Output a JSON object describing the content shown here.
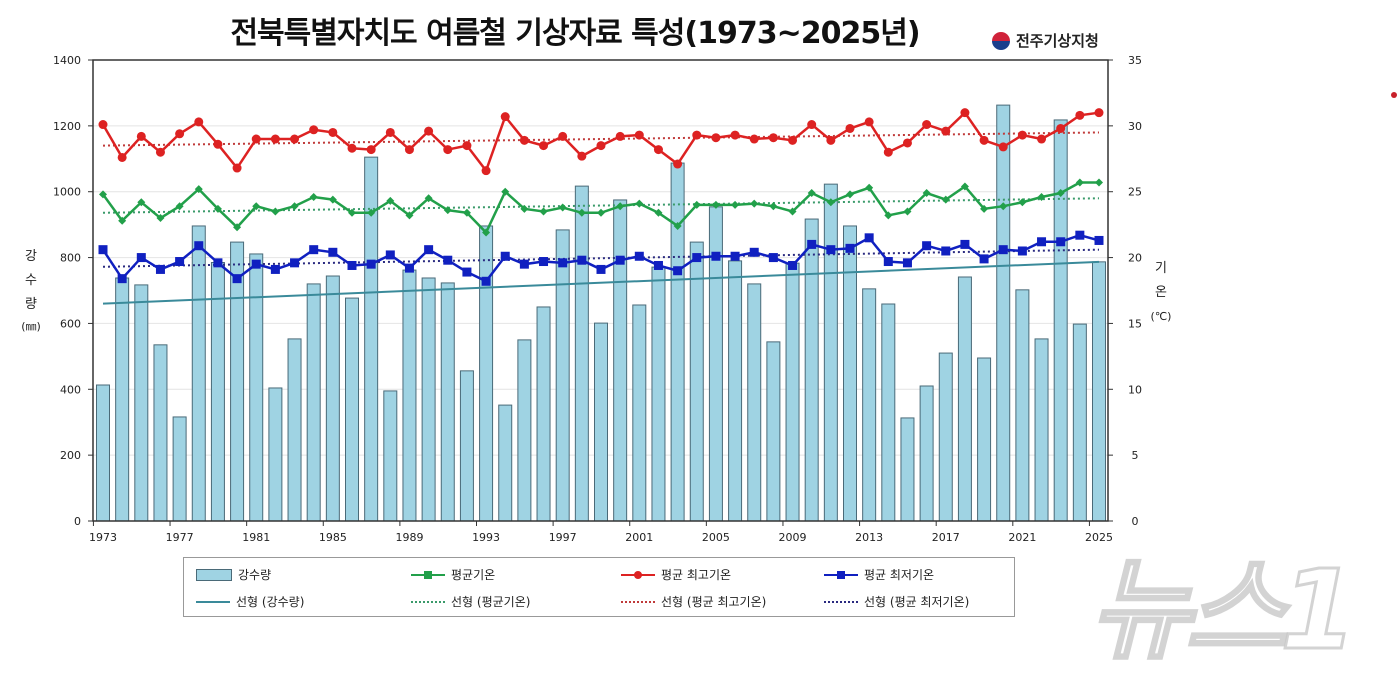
{
  "chart_data": {
    "type": "bar+line",
    "title": "전북특별자치도 여름철 기상자료 특성(1973~2025년)",
    "source": "전주기상지청",
    "ylabel_left": [
      "강",
      "수",
      "량",
      "(㎜)"
    ],
    "ylabel_right": [
      "기",
      "온",
      "(℃)"
    ],
    "ylim_left": [
      0,
      1400
    ],
    "yticks_left": [
      0,
      200,
      400,
      600,
      800,
      1000,
      1200,
      1400
    ],
    "ylim_right": [
      0,
      35
    ],
    "yticks_right": [
      0,
      5,
      10,
      15,
      20,
      25,
      30,
      35
    ],
    "xticks": [
      1973,
      1977,
      1981,
      1985,
      1989,
      1993,
      1997,
      2001,
      2005,
      2009,
      2013,
      2017,
      2021,
      2025
    ],
    "grid": "horizontal",
    "legend_position": "bottom",
    "x": [
      1973,
      1974,
      1975,
      1976,
      1977,
      1978,
      1979,
      1980,
      1981,
      1982,
      1983,
      1984,
      1985,
      1986,
      1987,
      1988,
      1989,
      1990,
      1991,
      1992,
      1993,
      1994,
      1995,
      1996,
      1997,
      1998,
      1999,
      2000,
      2001,
      2002,
      2003,
      2004,
      2005,
      2006,
      2007,
      2008,
      2009,
      2010,
      2011,
      2012,
      2013,
      2014,
      2015,
      2016,
      2017,
      2018,
      2019,
      2020,
      2021,
      2022,
      2023,
      2024,
      2025
    ],
    "series": [
      {
        "name": "강수량",
        "type": "bar",
        "axis": "left",
        "color": "#9fd3e3",
        "values": [
          413,
          738,
          717,
          535,
          316,
          896,
          785,
          847,
          811,
          404,
          553,
          720,
          744,
          677,
          1105,
          395,
          762,
          738,
          723,
          456,
          896,
          352,
          550,
          650,
          884,
          1017,
          601,
          975,
          656,
          771,
          1087,
          847,
          954,
          790,
          720,
          544,
          783,
          917,
          1023,
          896,
          705,
          659,
          313,
          410,
          510,
          741,
          495,
          1263,
          702,
          553,
          1218,
          598,
          787
        ]
      },
      {
        "name": "평균기온",
        "type": "line",
        "axis": "right",
        "color": "#22a04a",
        "marker": "diamond",
        "values": [
          24.8,
          22.8,
          24.2,
          23.0,
          23.9,
          25.2,
          23.7,
          22.3,
          23.9,
          23.5,
          23.9,
          24.6,
          24.4,
          23.4,
          23.4,
          24.3,
          23.2,
          24.5,
          23.6,
          23.4,
          21.9,
          25.0,
          23.7,
          23.5,
          23.8,
          23.4,
          23.4,
          23.9,
          24.1,
          23.4,
          22.4,
          24.0,
          24.0,
          24.0,
          24.1,
          23.9,
          23.5,
          24.9,
          24.2,
          24.8,
          25.3,
          23.2,
          23.5,
          24.9,
          24.4,
          25.4,
          23.7,
          23.9,
          24.2,
          24.6,
          24.9,
          25.7,
          25.7
        ]
      },
      {
        "name": "평균 최고기온",
        "type": "line",
        "axis": "right",
        "color": "#dd2222",
        "marker": "circle",
        "values": [
          30.1,
          27.6,
          29.2,
          28.0,
          29.4,
          30.3,
          28.6,
          26.8,
          29.0,
          29.0,
          29.0,
          29.7,
          29.5,
          28.3,
          28.2,
          29.5,
          28.2,
          29.6,
          28.2,
          28.5,
          26.6,
          30.7,
          28.9,
          28.5,
          29.2,
          27.7,
          28.5,
          29.2,
          29.3,
          28.2,
          27.1,
          29.3,
          29.1,
          29.3,
          29.0,
          29.1,
          28.9,
          30.1,
          28.9,
          29.8,
          30.3,
          28.0,
          28.7,
          30.1,
          29.6,
          31.0,
          28.9,
          28.4,
          29.3,
          29.0,
          29.8,
          30.8,
          31.0
        ]
      },
      {
        "name": "평균 최저기온",
        "type": "line",
        "axis": "right",
        "color": "#1020c0",
        "marker": "square",
        "values": [
          20.6,
          18.4,
          20.0,
          19.1,
          19.7,
          20.9,
          19.6,
          18.4,
          19.5,
          19.1,
          19.6,
          20.6,
          20.4,
          19.4,
          19.5,
          20.2,
          19.2,
          20.6,
          19.8,
          18.9,
          18.2,
          20.1,
          19.5,
          19.7,
          19.6,
          19.8,
          19.1,
          19.8,
          20.1,
          19.4,
          19.0,
          20.0,
          20.1,
          20.1,
          20.4,
          20.0,
          19.4,
          21.0,
          20.6,
          20.7,
          21.5,
          19.7,
          19.6,
          20.9,
          20.5,
          21.0,
          19.9,
          20.6,
          20.5,
          21.2,
          21.2,
          21.7,
          21.3
        ]
      }
    ],
    "trends": [
      {
        "name": "선형 (강수량)",
        "axis": "left",
        "color": "#3a8a9a",
        "style": "solid",
        "start": 660,
        "end": 787
      },
      {
        "name": "선형 (평균기온)",
        "axis": "right",
        "color": "#3a9a6a",
        "style": "dotted",
        "start": 23.4,
        "end": 24.5
      },
      {
        "name": "선형 (평균 최고기온)",
        "axis": "right",
        "color": "#c03a3a",
        "style": "dotted",
        "start": 28.5,
        "end": 29.5
      },
      {
        "name": "선형 (평균 최저기온)",
        "axis": "right",
        "color": "#2a2a80",
        "style": "dotted",
        "start": 19.3,
        "end": 20.6
      }
    ]
  },
  "watermark": "뉴스1"
}
